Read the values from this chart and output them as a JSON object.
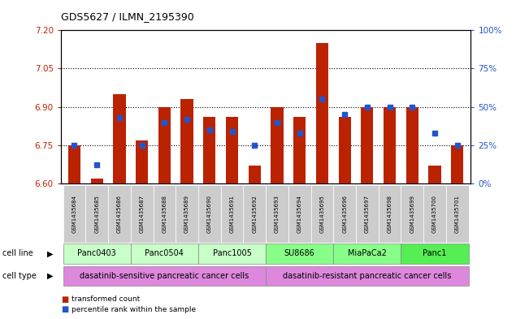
{
  "title": "GDS5627 / ILMN_2195390",
  "samples": [
    "GSM1435684",
    "GSM1435685",
    "GSM1435686",
    "GSM1435687",
    "GSM1435688",
    "GSM1435689",
    "GSM1435690",
    "GSM1435691",
    "GSM1435692",
    "GSM1435693",
    "GSM1435694",
    "GSM1435695",
    "GSM1435696",
    "GSM1435697",
    "GSM1435698",
    "GSM1435699",
    "GSM1435700",
    "GSM1435701"
  ],
  "red_values": [
    6.75,
    6.62,
    6.95,
    6.77,
    6.9,
    6.93,
    6.86,
    6.86,
    6.67,
    6.9,
    6.86,
    7.15,
    6.86,
    6.9,
    6.9,
    6.9,
    6.67,
    6.75
  ],
  "blue_pct": [
    25,
    12,
    43,
    25,
    40,
    42,
    35,
    34,
    25,
    40,
    33,
    55,
    45,
    50,
    50,
    50,
    33,
    25
  ],
  "ylim_left": [
    6.6,
    7.2
  ],
  "ylim_right": [
    0,
    100
  ],
  "yticks_left": [
    6.6,
    6.75,
    6.9,
    7.05,
    7.2
  ],
  "yticks_right": [
    0,
    25,
    50,
    75,
    100
  ],
  "ytick_labels_right": [
    "0%",
    "25%",
    "50%",
    "75%",
    "100%"
  ],
  "hlines": [
    6.75,
    6.9,
    7.05
  ],
  "bar_color": "#bb2200",
  "dot_color": "#2255cc",
  "bar_bottom": 6.6,
  "bar_width": 0.55,
  "cell_lines": [
    {
      "label": "Panc0403",
      "start": 0,
      "end": 2
    },
    {
      "label": "Panc0504",
      "start": 3,
      "end": 5
    },
    {
      "label": "Panc1005",
      "start": 6,
      "end": 8
    },
    {
      "label": "SU8686",
      "start": 9,
      "end": 11
    },
    {
      "label": "MiaPaCa2",
      "start": 12,
      "end": 14
    },
    {
      "label": "Panc1",
      "start": 15,
      "end": 17
    }
  ],
  "cell_line_colors": [
    "#c8ffc8",
    "#c8ffc8",
    "#c8ffc8",
    "#88ff88",
    "#88ff88",
    "#55ee55"
  ],
  "cell_types": [
    {
      "label": "dasatinib-sensitive pancreatic cancer cells",
      "start": 0,
      "end": 8
    },
    {
      "label": "dasatinib-resistant pancreatic cancer cells",
      "start": 9,
      "end": 17
    }
  ],
  "cell_type_color": "#dd88dd",
  "tick_bg_color": "#cccccc",
  "legend_red": "transformed count",
  "legend_blue": "percentile rank within the sample",
  "cell_line_row_label": "cell line",
  "cell_type_row_label": "cell type"
}
